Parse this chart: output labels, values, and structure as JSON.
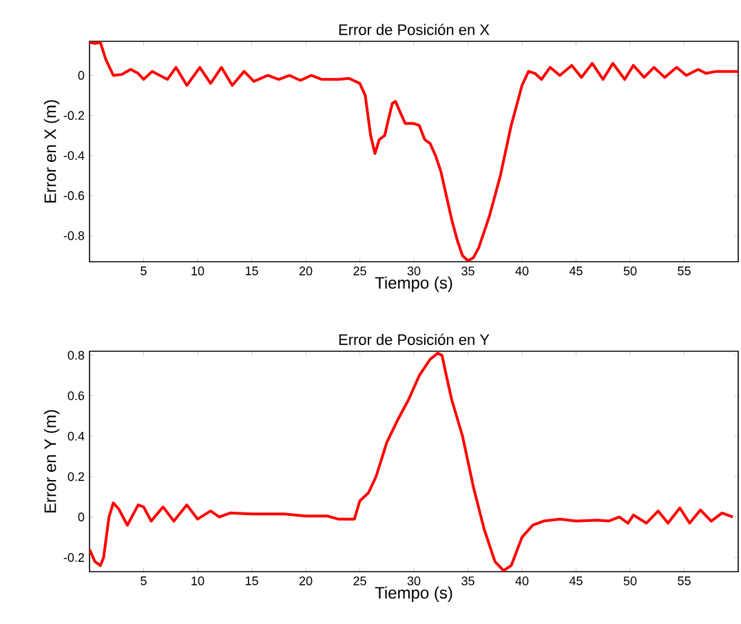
{
  "chart_data": [
    {
      "type": "line",
      "title": "Error de Posición en X",
      "xlabel": "Tiempo (s)",
      "ylabel": "Error en X (m)",
      "x": [
        0,
        0.5,
        1,
        1.5,
        2.2,
        3,
        3.8,
        4.5,
        5,
        5.8,
        6.5,
        7.2,
        8,
        9,
        10.2,
        11.2,
        12.2,
        13.2,
        14.3,
        15.2,
        16.5,
        17.5,
        18.5,
        19.5,
        20.5,
        21.5,
        23,
        24,
        25,
        25.5,
        26,
        26.4,
        26.8,
        27.3,
        27.6,
        28,
        28.3,
        28.7,
        29.2,
        30,
        30.5,
        31,
        31.5,
        32,
        32.5,
        33,
        33.5,
        34,
        34.5,
        35,
        35.5,
        36,
        37,
        38,
        39,
        40,
        40.6,
        41.2,
        41.8,
        42.6,
        43.5,
        44.6,
        45.5,
        46.5,
        47.5,
        48.4,
        49.5,
        50.3,
        51.3,
        52.2,
        53.2,
        54.3,
        55.2,
        56.3,
        57,
        58,
        60
      ],
      "series": [
        {
          "color": "#ff0000",
          "values": [
            0.165,
            0.16,
            0.165,
            0.08,
            0.0,
            0.005,
            0.03,
            0.01,
            -0.02,
            0.02,
            0.0,
            -0.02,
            0.04,
            -0.05,
            0.04,
            -0.04,
            0.04,
            -0.05,
            0.02,
            -0.03,
            0.0,
            -0.02,
            0.0,
            -0.025,
            0.0,
            -0.02,
            -0.02,
            -0.015,
            -0.04,
            -0.1,
            -0.3,
            -0.39,
            -0.32,
            -0.3,
            -0.23,
            -0.14,
            -0.13,
            -0.18,
            -0.24,
            -0.24,
            -0.25,
            -0.32,
            -0.34,
            -0.4,
            -0.48,
            -0.6,
            -0.72,
            -0.82,
            -0.9,
            -0.925,
            -0.91,
            -0.86,
            -0.7,
            -0.5,
            -0.25,
            -0.05,
            0.02,
            0.01,
            -0.02,
            0.04,
            0.0,
            0.05,
            -0.01,
            0.06,
            -0.02,
            0.06,
            -0.02,
            0.05,
            -0.01,
            0.04,
            -0.01,
            0.04,
            0.0,
            0.03,
            0.01,
            0.02,
            0.02
          ]
        }
      ],
      "xlim": [
        0,
        60
      ],
      "ylim": [
        -0.93,
        0.17
      ],
      "xticks": [
        5,
        10,
        15,
        20,
        25,
        30,
        35,
        40,
        45,
        50,
        55
      ],
      "yticks": [
        -0.8,
        -0.6,
        -0.4,
        -0.2,
        0
      ]
    },
    {
      "type": "line",
      "title": "Error de Posición en Y",
      "xlabel": "Tiempo (s)",
      "ylabel": "Error en Y (m)",
      "x": [
        0,
        0.5,
        1,
        1.3,
        1.8,
        2.2,
        2.7,
        3.5,
        4.5,
        5,
        5.7,
        6.8,
        7.8,
        9,
        10,
        11.2,
        12,
        13,
        15,
        18,
        20,
        22,
        23,
        24.5,
        25,
        25.8,
        26.5,
        27.5,
        28.5,
        29.5,
        30.5,
        31.5,
        32.2,
        32.6,
        33,
        33.5,
        34.5,
        35.5,
        36.5,
        37.5,
        38.3,
        39,
        40,
        41,
        42,
        43.5,
        45,
        47,
        48,
        49,
        49.8,
        50.3,
        51.5,
        52.6,
        53.5,
        54.6,
        55.5,
        56.5,
        57.5,
        58.5,
        59.5
      ],
      "series": [
        {
          "color": "#ff0000",
          "values": [
            -0.16,
            -0.22,
            -0.24,
            -0.2,
            0.0,
            0.07,
            0.04,
            -0.04,
            0.06,
            0.05,
            -0.02,
            0.05,
            -0.02,
            0.06,
            -0.01,
            0.03,
            0.0,
            0.02,
            0.015,
            0.015,
            0.005,
            0.005,
            -0.01,
            -0.01,
            0.08,
            0.12,
            0.2,
            0.37,
            0.48,
            0.58,
            0.7,
            0.78,
            0.81,
            0.8,
            0.7,
            0.58,
            0.4,
            0.15,
            -0.06,
            -0.22,
            -0.265,
            -0.24,
            -0.1,
            -0.04,
            -0.02,
            -0.01,
            -0.02,
            -0.015,
            -0.02,
            0.0,
            -0.03,
            0.01,
            -0.03,
            0.03,
            -0.03,
            0.045,
            -0.03,
            0.035,
            -0.02,
            0.02,
            0.0
          ]
        }
      ],
      "xlim": [
        0,
        60
      ],
      "ylim": [
        -0.27,
        0.82
      ],
      "xticks": [
        5,
        10,
        15,
        20,
        25,
        30,
        35,
        40,
        45,
        50,
        55
      ],
      "yticks": [
        -0.2,
        0,
        0.2,
        0.4,
        0.6,
        0.8
      ]
    }
  ]
}
